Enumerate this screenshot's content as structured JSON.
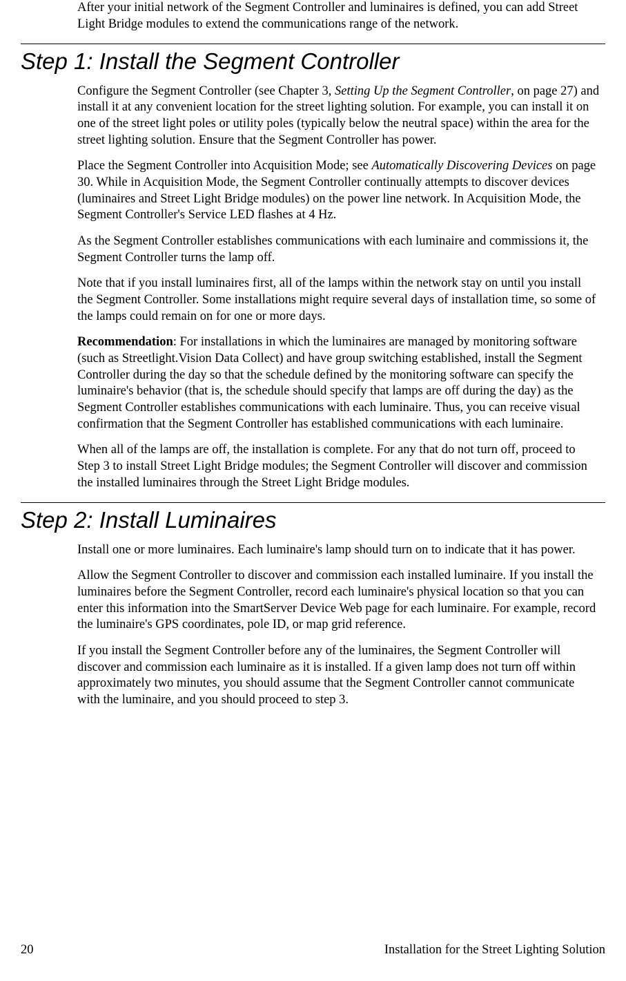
{
  "intro": {
    "p1": "After your initial network of the Segment Controller and luminaires is defined, you can add Street Light Bridge modules to extend the communications range of the network."
  },
  "step1": {
    "heading": "Step 1: Install the Segment Controller",
    "p1_a": "Configure the Segment Controller (see Chapter 3, ",
    "p1_ref": "Setting Up the Segment Controller",
    "p1_b": ", on page 27) and install it at any convenient location for the street lighting solution.  For example, you can install it on one of the street light poles or utility poles (typically below the neutral space) within the area for the street lighting solution.  Ensure that the Segment Controller has power.",
    "p2_a": "Place the Segment Controller into Acquisition Mode; see ",
    "p2_ref": "Automatically Discovering Devices",
    "p2_b": " on page 30.  While in Acquisition Mode, the Segment Controller continually attempts to discover devices (luminaires and Street Light Bridge modules) on the power line network.  In Acquisition Mode, the Segment Controller's Service LED flashes at 4 Hz.",
    "p3": "As the Segment Controller establishes communications with each luminaire and commissions it, the Segment Controller turns the lamp off.",
    "p4": "Note that if you install luminaires first, all of the lamps within the network stay on until you install the Segment Controller.  Some installations might require several days of installation time, so some of the lamps could remain on for one or more days.",
    "p5_label": "Recommendation",
    "p5_body": ":  For installations in which the luminaires are managed by monitoring software (such as Streetlight.Vision Data Collect) and have group switching established, install the Segment Controller during the day so that the schedule defined by the monitoring software can specify the luminaire's behavior (that is, the schedule should specify that lamps are off during the day) as the Segment Controller establishes communications with each luminaire.  Thus, you can receive visual confirmation that the Segment Controller has established communications with each luminaire.",
    "p6": "When all of the lamps are off, the installation is complete.  For any that do not turn off, proceed to Step 3 to install Street Light Bridge modules; the Segment Controller will discover and commission the installed luminaires through the Street Light Bridge modules."
  },
  "step2": {
    "heading": "Step 2: Install Luminaires",
    "p1": "Install one or more luminaires.  Each luminaire's lamp should turn on to indicate that it has power.",
    "p2": "Allow the Segment Controller to discover and commission each installed luminaire.  If you install the luminaires before the Segment Controller, record each luminaire's physical location so that you can enter this information into the SmartServer Device Web page for each luminaire.  For example, record the luminaire's GPS coordinates, pole ID, or map grid reference.",
    "p3": "If you install the Segment Controller before any of the luminaires, the Segment Controller will discover and commission each luminaire as it is installed.  If a given lamp does not turn off within approximately two minutes, you should assume that the Segment Controller cannot communicate with the luminaire, and you should proceed to step 3."
  },
  "footer": {
    "page_number": "20",
    "title": "Installation for the Street Lighting Solution"
  }
}
